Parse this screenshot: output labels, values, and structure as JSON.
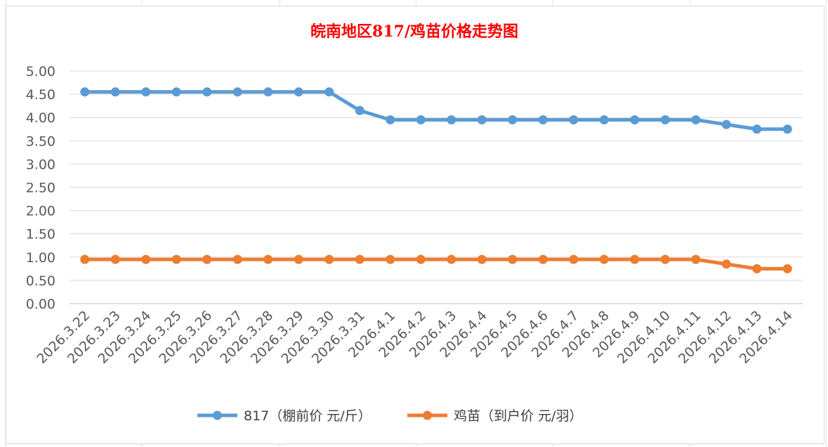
{
  "chart_data": {
    "type": "line",
    "title": "皖南地区817/鸡苗价格走势图",
    "xlabel": "",
    "ylabel": "",
    "categories": [
      "2026.3.22",
      "2026.3.23",
      "2026.3.24",
      "2026.3.25",
      "2026.3.26",
      "2026.3.27",
      "2026.3.28",
      "2026.3.29",
      "2026.3.30",
      "2026.3.31",
      "2026.4.1",
      "2026.4.2",
      "2026.4.3",
      "2026.4.4",
      "2026.4.5",
      "2026.4.6",
      "2026.4.7",
      "2026.4.8",
      "2026.4.9",
      "2026.4.10",
      "2026.4.11",
      "2026.4.12",
      "2026.4.13",
      "2026.4.14"
    ],
    "ylim": [
      0,
      5
    ],
    "yticks": [
      "0.00",
      "0.50",
      "1.00",
      "1.50",
      "2.00",
      "2.50",
      "3.00",
      "3.50",
      "4.00",
      "4.50",
      "5.00"
    ],
    "grid": true,
    "legend_position": "bottom",
    "series": [
      {
        "name": "817（棚前价 元/斤）",
        "color": "#5b9bd5",
        "values": [
          4.55,
          4.55,
          4.55,
          4.55,
          4.55,
          4.55,
          4.55,
          4.55,
          4.55,
          4.15,
          3.95,
          3.95,
          3.95,
          3.95,
          3.95,
          3.95,
          3.95,
          3.95,
          3.95,
          3.95,
          3.95,
          3.85,
          3.75,
          3.75
        ]
      },
      {
        "name": "鸡苗（到户价 元/羽）",
        "color": "#ed7d31",
        "values": [
          0.95,
          0.95,
          0.95,
          0.95,
          0.95,
          0.95,
          0.95,
          0.95,
          0.95,
          0.95,
          0.95,
          0.95,
          0.95,
          0.95,
          0.95,
          0.95,
          0.95,
          0.95,
          0.95,
          0.95,
          0.95,
          0.85,
          0.75,
          0.75
        ]
      }
    ]
  }
}
